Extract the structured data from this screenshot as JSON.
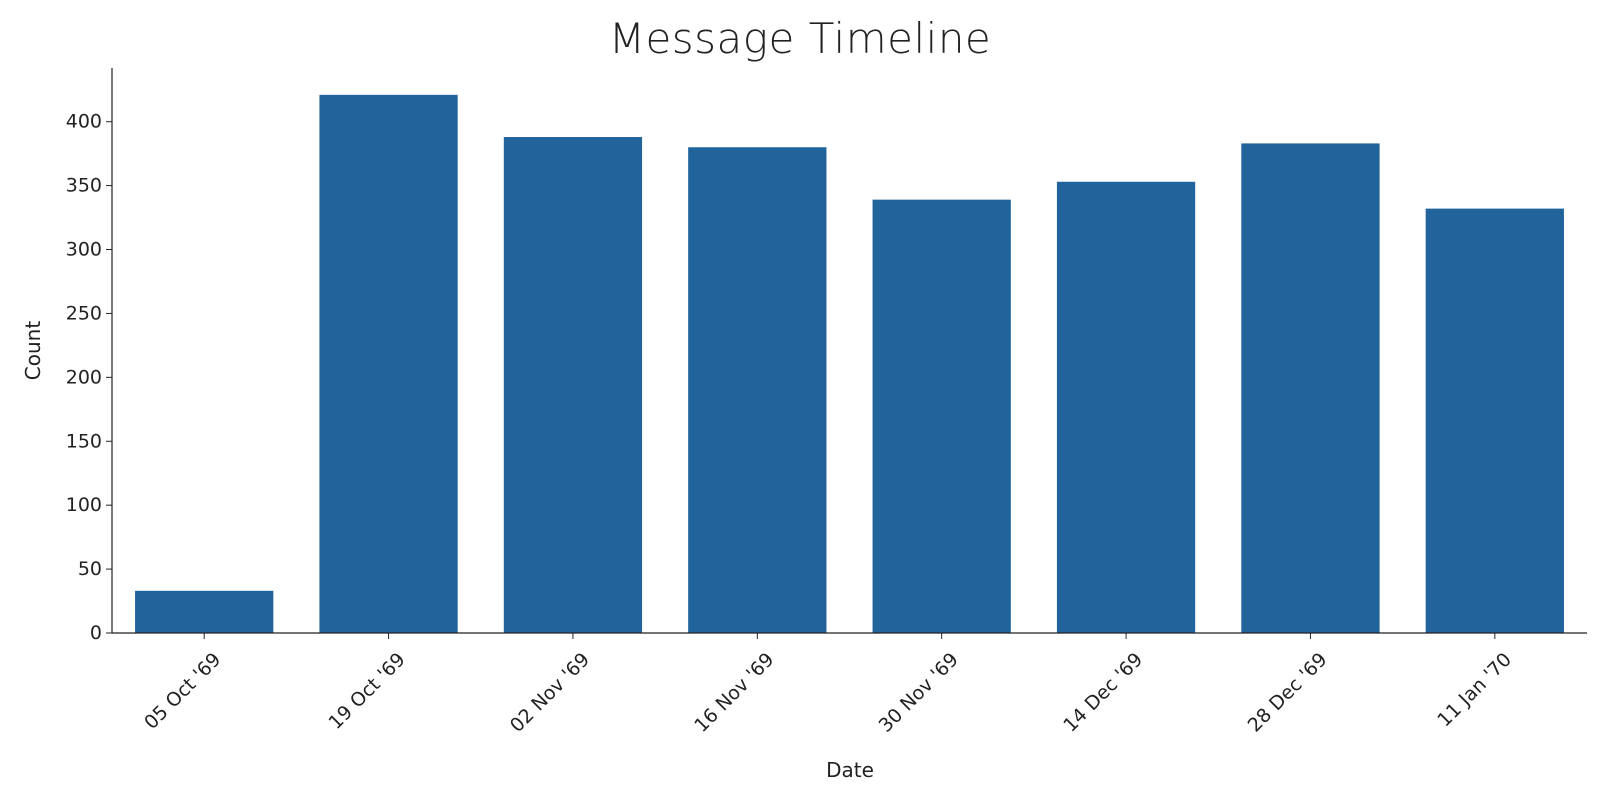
{
  "chart_data": {
    "type": "bar",
    "title": "Message Timeline",
    "xlabel": "Date",
    "ylabel": "Count",
    "categories": [
      "05 Oct '69",
      "19 Oct '69",
      "02 Nov '69",
      "16 Nov '69",
      "30 Nov '69",
      "14 Dec '69",
      "28 Dec '69",
      "11 Jan '70"
    ],
    "values": [
      33,
      421,
      388,
      380,
      339,
      353,
      383,
      332
    ],
    "ylim": [
      0,
      442
    ],
    "yticks": [
      0,
      50,
      100,
      150,
      200,
      250,
      300,
      350,
      400
    ],
    "grid": false,
    "bar_color": "#21639b",
    "axis_color": "#222222"
  }
}
